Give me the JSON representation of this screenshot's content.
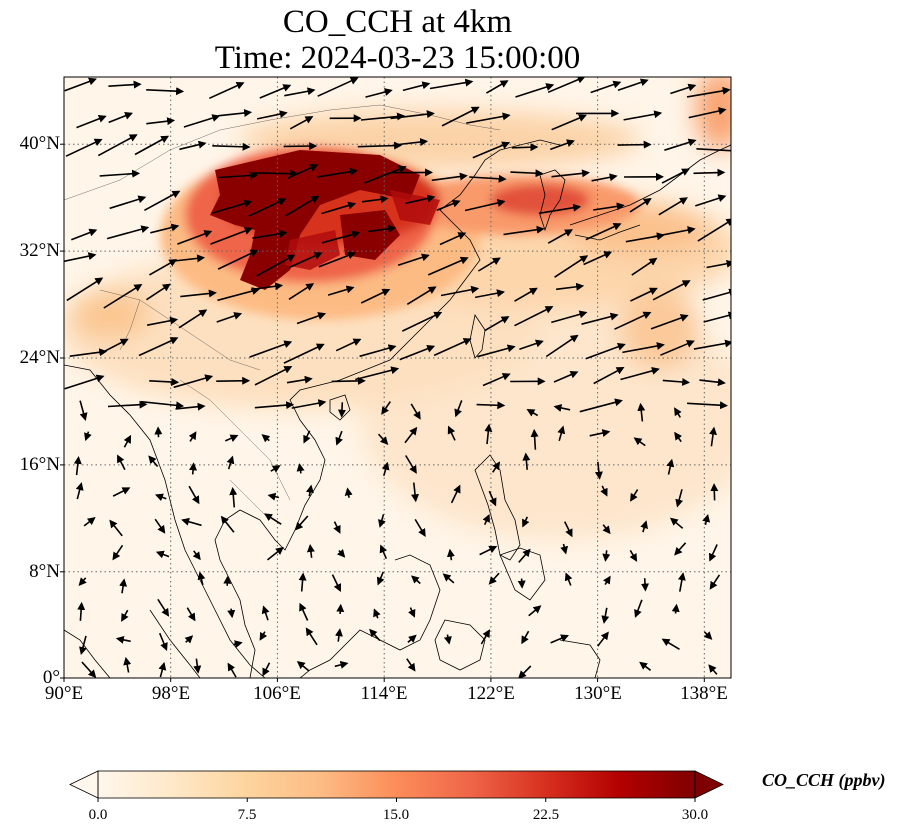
{
  "title": {
    "line1": "CO_CCH at 4km",
    "line2": "Time: 2024-03-23 15:00:00"
  },
  "map": {
    "projection": "PlateCarree",
    "lon_range": [
      90,
      140
    ],
    "lat_range": [
      0,
      45
    ],
    "gridlines": "dotted",
    "coastlines": true,
    "lat_ticks": [
      "40°N",
      "32°N",
      "24°N",
      "16°N",
      "8°N",
      "0°"
    ],
    "lon_ticks": [
      "90°E",
      "98°E",
      "106°E",
      "114°E",
      "122°E",
      "130°E",
      "138°E"
    ],
    "field": "CO_CCH concentration, high plume over central/eastern China ~28–40°N, 100–125°E",
    "vectors": "wind arrows, predominantly westerly north of ~18°N, weak/variable to the south"
  },
  "colorbar": {
    "label": "CO_CCH (ppbv)",
    "ticks": [
      "0.0",
      "7.5",
      "15.0",
      "22.5",
      "30.0"
    ],
    "min": 0,
    "max": 30,
    "extend": "both",
    "colormap": "OrRd",
    "colors": [
      "#fff7ec",
      "#fee8c8",
      "#fdd49e",
      "#fdbb84",
      "#fc8d59",
      "#ef6548",
      "#d7301f",
      "#b30000",
      "#7f0000"
    ]
  }
}
